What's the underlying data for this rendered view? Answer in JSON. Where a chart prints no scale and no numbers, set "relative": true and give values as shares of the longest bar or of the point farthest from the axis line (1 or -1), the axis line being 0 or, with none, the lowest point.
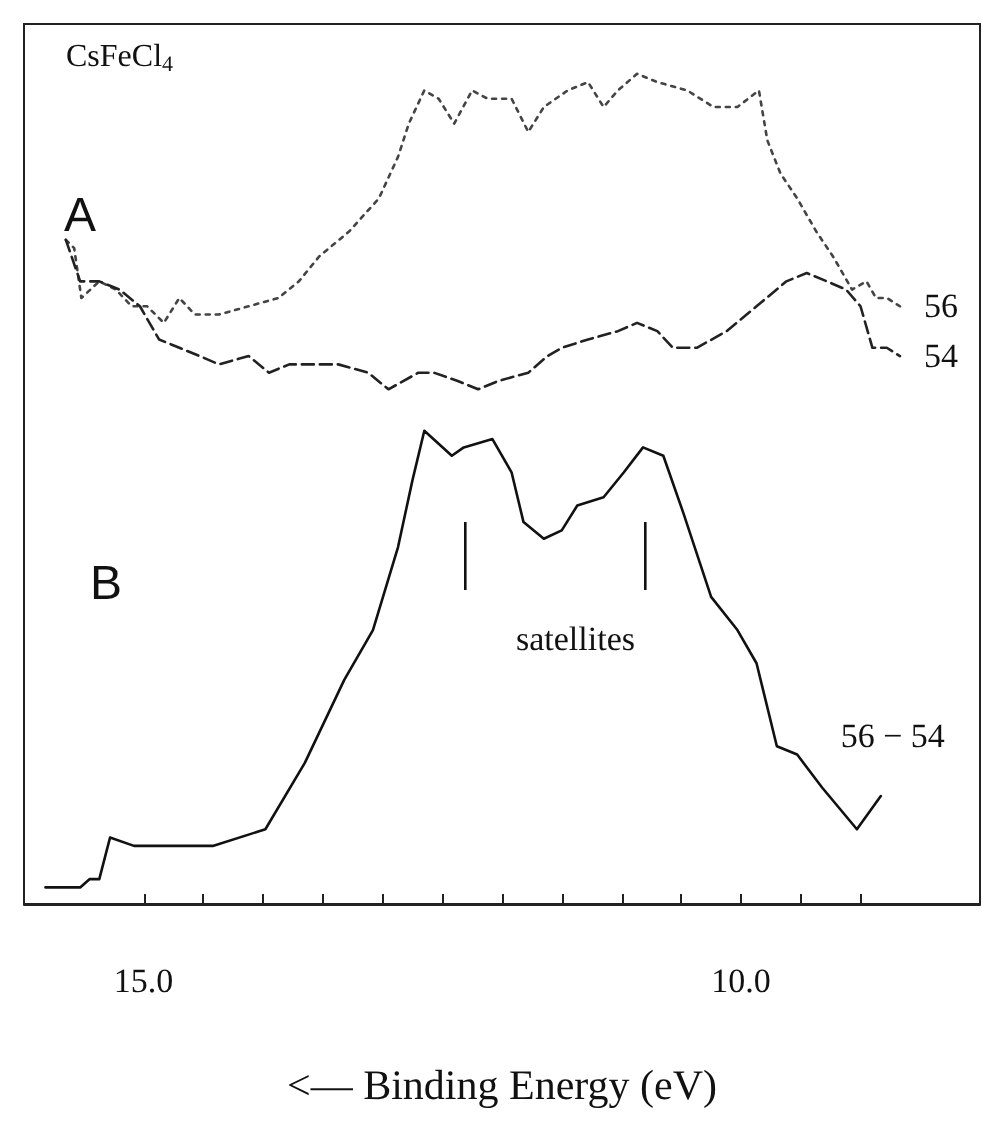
{
  "chart_data": {
    "type": "line",
    "title": "CsFeCl$_{4}$",
    "xlabel": "<— Binding Energy (eV)",
    "relative": true,
    "xlim": [
      16,
      8
    ],
    "xticks": [
      {
        "value": 15,
        "label": "15.0"
      },
      {
        "value": 14.5,
        "label": null
      },
      {
        "value": 14,
        "label": null
      },
      {
        "value": 13.5,
        "label": null
      },
      {
        "value": 13,
        "label": null
      },
      {
        "value": 12.5,
        "label": null
      },
      {
        "value": 12,
        "label": null
      },
      {
        "value": 11.5,
        "label": null
      },
      {
        "value": 11,
        "label": null
      },
      {
        "value": 10.5,
        "label": null
      },
      {
        "value": 10,
        "label": "10.0"
      },
      {
        "value": 9.5,
        "label": null
      },
      {
        "value": 9,
        "label": null
      }
    ],
    "grid": false,
    "legend": false,
    "marker": "none",
    "tick_labels": "x",
    "annotations": [
      "A",
      "B",
      "satellites"
    ],
    "series": [
      {
        "name": "56",
        "color": "#444444",
        "line_style": "dotted",
        "x": [
          15.65,
          15.58,
          15.52,
          15.37,
          15.23,
          15.1,
          14.97,
          14.83,
          14.7,
          14.57,
          14.37,
          14.12,
          13.87,
          13.7,
          13.53,
          13.28,
          13.03,
          12.87,
          12.78,
          12.65,
          12.53,
          12.4,
          12.25,
          12.12,
          11.92,
          11.78,
          11.65,
          11.45,
          11.28,
          11.15,
          11.03,
          10.87,
          10.7,
          10.45,
          10.23,
          10.03,
          9.85,
          9.78,
          9.67,
          9.53,
          9.37,
          9.23,
          9.07,
          8.95,
          8.87,
          8.78,
          8.67
        ],
        "values": [
          0.8,
          0.79,
          0.73,
          0.75,
          0.74,
          0.72,
          0.72,
          0.7,
          0.73,
          0.71,
          0.71,
          0.72,
          0.73,
          0.75,
          0.78,
          0.81,
          0.85,
          0.9,
          0.94,
          0.98,
          0.97,
          0.94,
          0.98,
          0.97,
          0.97,
          0.93,
          0.96,
          0.98,
          0.99,
          0.96,
          0.98,
          1.0,
          0.99,
          0.98,
          0.96,
          0.96,
          0.98,
          0.92,
          0.88,
          0.85,
          0.81,
          0.78,
          0.74,
          0.75,
          0.73,
          0.73,
          0.72
        ]
      },
      {
        "name": "54",
        "color": "#222222",
        "line_style": "dashed",
        "x": [
          15.65,
          15.53,
          15.37,
          15.2,
          15.03,
          14.87,
          14.7,
          14.53,
          14.37,
          14.12,
          13.95,
          13.78,
          13.53,
          13.37,
          13.12,
          12.95,
          12.7,
          12.57,
          12.37,
          12.2,
          12.03,
          11.78,
          11.62,
          11.5,
          11.28,
          11.03,
          10.87,
          10.7,
          10.57,
          10.37,
          10.12,
          9.87,
          9.62,
          9.45,
          9.28,
          9.12,
          9.0,
          8.9,
          8.78,
          8.67
        ],
        "values": [
          0.8,
          0.75,
          0.75,
          0.74,
          0.72,
          0.68,
          0.67,
          0.66,
          0.65,
          0.66,
          0.64,
          0.65,
          0.65,
          0.65,
          0.64,
          0.62,
          0.64,
          0.64,
          0.63,
          0.62,
          0.63,
          0.64,
          0.66,
          0.67,
          0.68,
          0.69,
          0.7,
          0.69,
          0.67,
          0.67,
          0.69,
          0.72,
          0.75,
          0.76,
          0.75,
          0.74,
          0.72,
          0.67,
          0.67,
          0.66
        ]
      },
      {
        "name": "56 − 54",
        "color": "#111111",
        "line_style": "solid",
        "x": [
          15.82,
          15.67,
          15.53,
          15.45,
          15.37,
          15.28,
          15.08,
          14.75,
          14.42,
          13.98,
          13.65,
          13.32,
          13.08,
          12.87,
          12.75,
          12.65,
          12.42,
          12.32,
          12.08,
          11.92,
          11.82,
          11.65,
          11.5,
          11.37,
          11.15,
          10.98,
          10.82,
          10.65,
          10.48,
          10.25,
          10.03,
          9.87,
          9.7,
          9.53,
          9.32,
          9.03,
          8.83
        ],
        "values": [
          0.02,
          0.02,
          0.02,
          0.03,
          0.03,
          0.08,
          0.07,
          0.07,
          0.07,
          0.09,
          0.17,
          0.27,
          0.33,
          0.43,
          0.51,
          0.57,
          0.54,
          0.55,
          0.56,
          0.52,
          0.46,
          0.44,
          0.45,
          0.48,
          0.49,
          0.52,
          0.55,
          0.54,
          0.47,
          0.37,
          0.33,
          0.29,
          0.19,
          0.18,
          0.14,
          0.09,
          0.13
        ]
      }
    ]
  }
}
